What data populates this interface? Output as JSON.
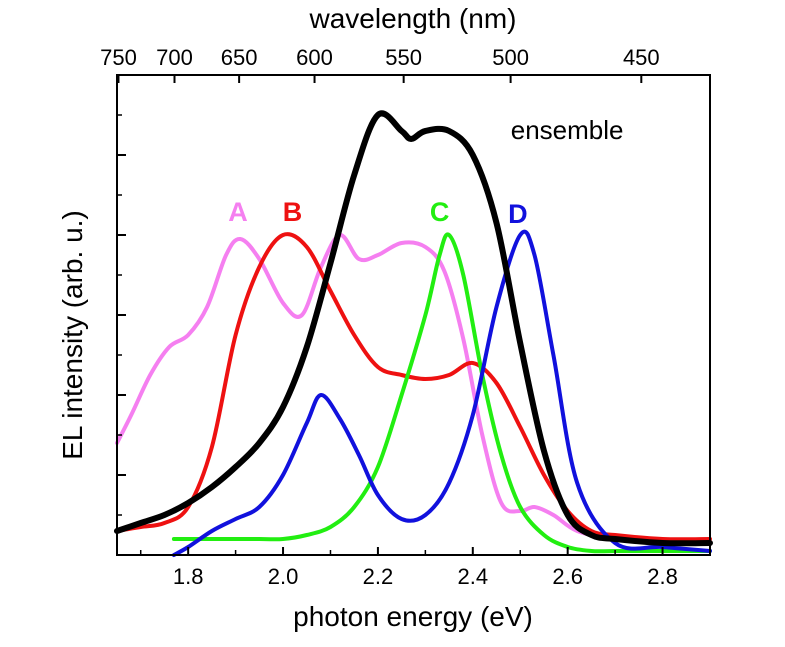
{
  "chart_data": {
    "type": "line",
    "xlabel": "photon energy (eV)",
    "ylabel": "EL intensity (arb. u.)",
    "top_axis_label": "wavelength (nm)",
    "xlim": [
      1.65,
      2.9
    ],
    "ylim": [
      0,
      1.2
    ],
    "x_ticks": [
      1.8,
      2.0,
      2.2,
      2.4,
      2.6,
      2.8
    ],
    "x_tick_labels": [
      "1.8",
      "2.0",
      "2.2",
      "2.4",
      "2.6",
      "2.8"
    ],
    "top_ticks_nm": [
      750,
      700,
      650,
      600,
      550,
      500,
      450
    ],
    "top_tick_labels": [
      "750",
      "700",
      "650",
      "600",
      "550",
      "500",
      "450"
    ],
    "y_ticks": [
      0.2,
      0.4,
      0.6,
      0.8,
      1.0
    ],
    "series": [
      {
        "name": "ensemble",
        "label": "ensemble",
        "color": "#000000",
        "width": 6,
        "x": [
          1.65,
          1.7,
          1.75,
          1.8,
          1.85,
          1.9,
          1.95,
          2.0,
          2.05,
          2.1,
          2.15,
          2.2,
          2.25,
          2.27,
          2.3,
          2.35,
          2.4,
          2.45,
          2.5,
          2.55,
          2.6,
          2.65,
          2.7,
          2.8,
          2.9
        ],
        "y": [
          0.06,
          0.08,
          0.1,
          0.13,
          0.17,
          0.22,
          0.28,
          0.37,
          0.52,
          0.73,
          0.95,
          1.1,
          1.06,
          1.04,
          1.06,
          1.06,
          1.0,
          0.83,
          0.53,
          0.26,
          0.1,
          0.05,
          0.04,
          0.03,
          0.03
        ]
      },
      {
        "name": "A",
        "label": "A",
        "color": "#f57ff0",
        "width": 4,
        "x": [
          1.65,
          1.68,
          1.72,
          1.76,
          1.8,
          1.84,
          1.88,
          1.91,
          1.95,
          2.0,
          2.04,
          2.08,
          2.12,
          2.16,
          2.2,
          2.25,
          2.3,
          2.34,
          2.38,
          2.42,
          2.46,
          2.5,
          2.53,
          2.57,
          2.62,
          2.7,
          2.8,
          2.9
        ],
        "y": [
          0.28,
          0.35,
          0.45,
          0.52,
          0.55,
          0.62,
          0.75,
          0.79,
          0.74,
          0.63,
          0.6,
          0.72,
          0.8,
          0.74,
          0.75,
          0.78,
          0.77,
          0.71,
          0.54,
          0.3,
          0.13,
          0.11,
          0.12,
          0.1,
          0.06,
          0.04,
          0.03,
          0.03
        ]
      },
      {
        "name": "B",
        "label": "B",
        "color": "#ee1111",
        "width": 4,
        "x": [
          1.65,
          1.7,
          1.75,
          1.8,
          1.85,
          1.9,
          1.95,
          2.0,
          2.05,
          2.1,
          2.15,
          2.2,
          2.25,
          2.3,
          2.35,
          2.4,
          2.45,
          2.5,
          2.55,
          2.6,
          2.65,
          2.7,
          2.8,
          2.9
        ],
        "y": [
          0.06,
          0.07,
          0.08,
          0.12,
          0.27,
          0.55,
          0.72,
          0.8,
          0.77,
          0.66,
          0.55,
          0.47,
          0.45,
          0.44,
          0.45,
          0.48,
          0.43,
          0.32,
          0.2,
          0.11,
          0.06,
          0.05,
          0.04,
          0.04
        ]
      },
      {
        "name": "C",
        "label": "C",
        "color": "#22ee11",
        "width": 4,
        "x": [
          1.77,
          1.85,
          1.95,
          2.0,
          2.05,
          2.1,
          2.15,
          2.2,
          2.25,
          2.3,
          2.33,
          2.35,
          2.38,
          2.42,
          2.46,
          2.5,
          2.55,
          2.6,
          2.65,
          2.7,
          2.8,
          2.9
        ],
        "y": [
          0.04,
          0.04,
          0.04,
          0.04,
          0.05,
          0.07,
          0.12,
          0.22,
          0.4,
          0.6,
          0.75,
          0.8,
          0.7,
          0.45,
          0.25,
          0.12,
          0.05,
          0.02,
          0.01,
          0.01,
          0.01,
          0.01
        ]
      },
      {
        "name": "D",
        "label": "D",
        "color": "#1111dd",
        "width": 4,
        "x": [
          1.77,
          1.8,
          1.85,
          1.9,
          1.95,
          2.0,
          2.05,
          2.08,
          2.12,
          2.16,
          2.2,
          2.25,
          2.3,
          2.35,
          2.4,
          2.45,
          2.5,
          2.53,
          2.57,
          2.62,
          2.7,
          2.8,
          2.9
        ],
        "y": [
          0.0,
          0.02,
          0.06,
          0.09,
          0.12,
          0.2,
          0.33,
          0.4,
          0.34,
          0.25,
          0.15,
          0.09,
          0.1,
          0.18,
          0.35,
          0.62,
          0.8,
          0.75,
          0.5,
          0.18,
          0.03,
          0.02,
          0.01
        ]
      }
    ],
    "annotations": [
      {
        "series": "A",
        "text": "A",
        "x": 1.905,
        "y": 0.835
      },
      {
        "series": "B",
        "text": "B",
        "x": 2.02,
        "y": 0.835
      },
      {
        "series": "C",
        "text": "C",
        "x": 2.33,
        "y": 0.835
      },
      {
        "series": "D",
        "text": "D",
        "x": 2.495,
        "y": 0.83
      },
      {
        "series": "ensemble",
        "text": "ensemble",
        "x": 2.48,
        "y": 1.04
      }
    ]
  }
}
